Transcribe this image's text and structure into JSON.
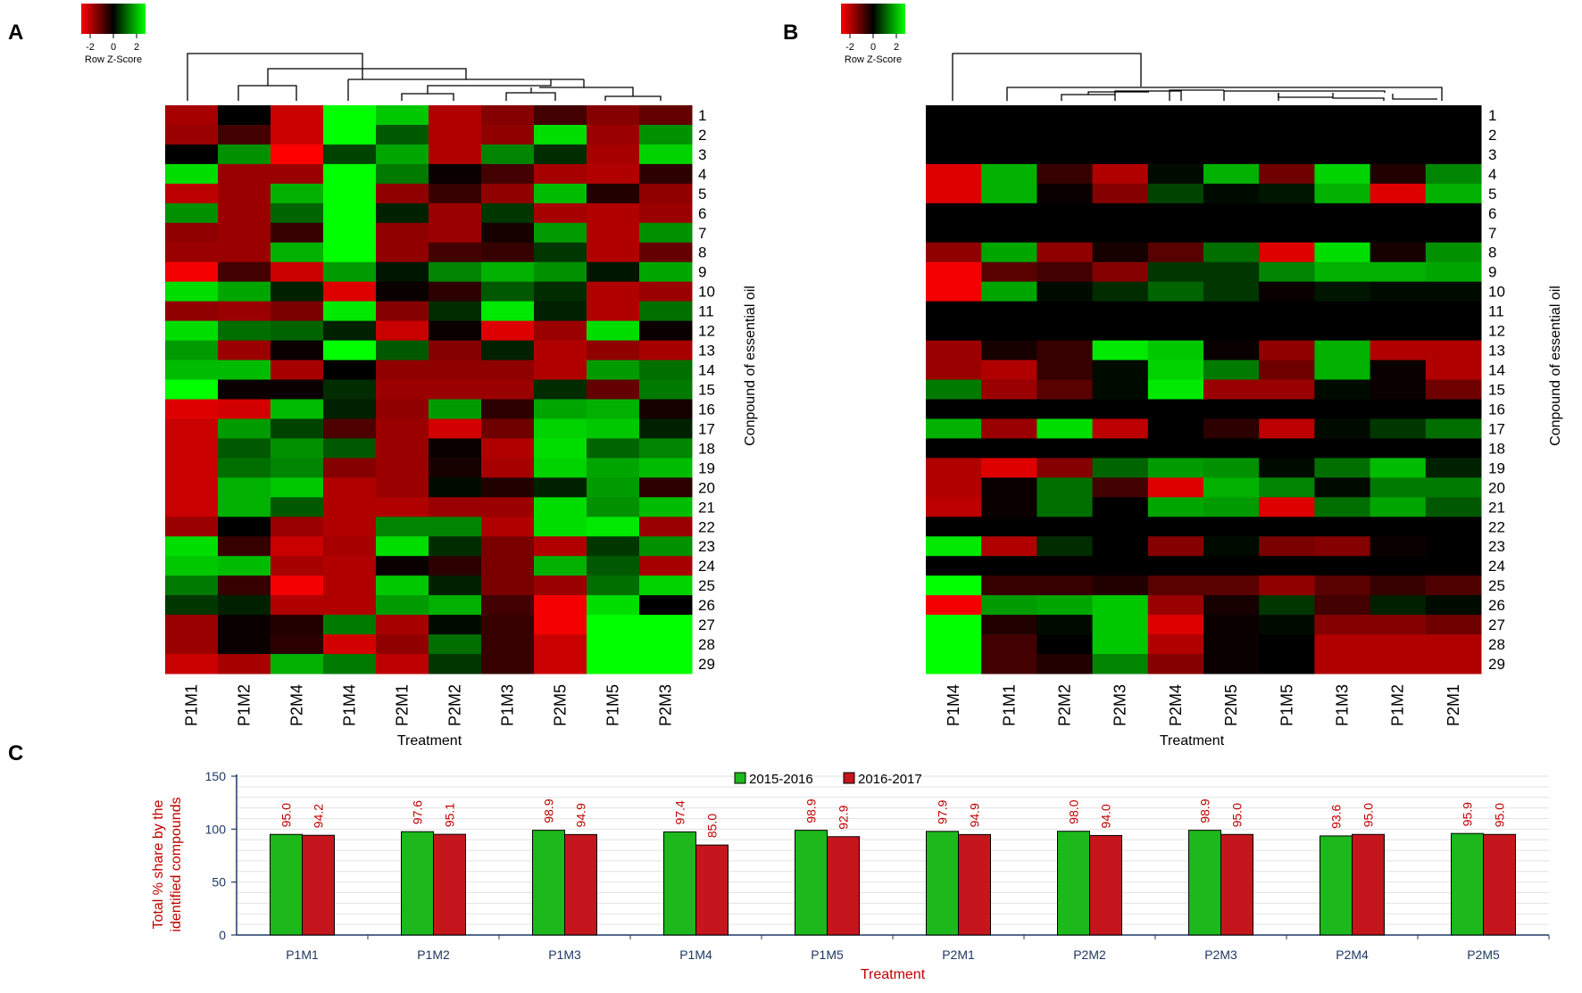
{
  "panel_labels": [
    "A",
    "B",
    "C"
  ],
  "color_key": {
    "title": "Row Z-Score",
    "ticks": [
      "-2",
      "0",
      "2"
    ],
    "low": "#ff0000",
    "mid": "#000000",
    "high": "#00ff00"
  },
  "chart_data": [
    {
      "type": "heatmap",
      "panel": "A",
      "columns": [
        "P1M1",
        "P1M2",
        "P2M4",
        "P1M4",
        "P2M1",
        "P2M2",
        "P1M3",
        "P2M5",
        "P1M5",
        "P2M3"
      ],
      "rows": [
        "1",
        "2",
        "3",
        "4",
        "5",
        "6",
        "7",
        "8",
        "9",
        "10",
        "11",
        "12",
        "13",
        "14",
        "15",
        "16",
        "17",
        "18",
        "19",
        "20",
        "21",
        "22",
        "23",
        "24",
        "25",
        "26",
        "27",
        "28",
        "29"
      ],
      "xlabel": "Treatment",
      "ylabel": "Conpound of essential oil",
      "values": [
        [
          -1.5,
          0,
          -1.8,
          2.5,
          1.8,
          -1.6,
          -1.2,
          -0.6,
          -1.2,
          -0.9
        ],
        [
          -1.4,
          -0.6,
          -1.8,
          2.5,
          0.8,
          -1.6,
          -1.3,
          2,
          -1.4,
          1.3
        ],
        [
          0,
          1.3,
          -2.3,
          0.6,
          1.5,
          -1.6,
          1.2,
          0.4,
          -1.5,
          1.9
        ],
        [
          2,
          -1.4,
          -1.4,
          2.5,
          1.1,
          -0.1,
          -0.6,
          -1.5,
          -1.6,
          -0.4
        ],
        [
          -1.7,
          -1.4,
          1.6,
          2.5,
          -1.3,
          -0.5,
          -1.3,
          1.7,
          -0.3,
          -1.3
        ],
        [
          1.3,
          -1.4,
          0.9,
          2.5,
          0.3,
          -1.4,
          0.5,
          -1.5,
          -1.6,
          -1.4
        ],
        [
          -1.3,
          -1.4,
          -0.5,
          2.5,
          -1.3,
          -1.4,
          -0.2,
          1.4,
          -1.6,
          1.3
        ],
        [
          -1.4,
          -1.4,
          1.6,
          2.5,
          -1.3,
          -0.6,
          -0.5,
          0.5,
          -1.6,
          -0.9
        ],
        [
          -2.2,
          -0.6,
          -1.8,
          1.4,
          0.2,
          1.2,
          1.6,
          1.3,
          0.2,
          1.5
        ],
        [
          2,
          1.5,
          0.3,
          -2,
          -0.1,
          -0.4,
          0.8,
          0.4,
          -1.6,
          -1.4
        ],
        [
          -1.3,
          -1.4,
          -1.1,
          2.1,
          -1.2,
          0.4,
          2.1,
          0.3,
          -1.6,
          1
        ],
        [
          2,
          1,
          0.9,
          0.3,
          -1.8,
          -0.1,
          -2,
          -1.4,
          2,
          -0.1
        ],
        [
          1.4,
          -1.4,
          -0.1,
          2.3,
          0.8,
          -1.2,
          0.3,
          -1.6,
          -1.3,
          -1.5
        ],
        [
          1.7,
          1.7,
          -1.5,
          0,
          -1.3,
          -1.3,
          -1.3,
          -1.6,
          1.4,
          1
        ],
        [
          2.4,
          -0.1,
          -0.1,
          0.4,
          -1.4,
          -1.4,
          -1.4,
          0.4,
          -0.9,
          1.1
        ],
        [
          -2,
          -1.9,
          1.7,
          0.3,
          -1.3,
          1.4,
          -0.4,
          1.5,
          1.6,
          -0.2
        ],
        [
          -1.8,
          1.4,
          0.6,
          -0.7,
          -1.4,
          -1.9,
          -1,
          1.9,
          1.8,
          0.3
        ],
        [
          -1.8,
          0.8,
          1.3,
          0.8,
          -1.4,
          -0.1,
          -1.6,
          2,
          0.9,
          1.2
        ],
        [
          -1.8,
          1,
          1.2,
          -1.2,
          -1.4,
          -0.2,
          -1.5,
          1.9,
          1.5,
          1.7
        ],
        [
          -1.8,
          1.6,
          1.8,
          -1.6,
          -1.4,
          0.1,
          -0.3,
          0.3,
          1.4,
          -0.4
        ],
        [
          -1.8,
          1.6,
          0.8,
          -1.6,
          -1.6,
          -1.4,
          -1.4,
          2,
          1.3,
          1.7
        ],
        [
          -1.4,
          0,
          -1.4,
          -1.6,
          1.2,
          1.2,
          -1.6,
          2,
          2.1,
          -1.4
        ],
        [
          2,
          -0.5,
          -1.8,
          -1.5,
          2,
          0.4,
          -1.1,
          -1.6,
          0.5,
          1.3
        ],
        [
          1.8,
          1.7,
          -1.5,
          -1.6,
          -0.1,
          -0.4,
          -1.1,
          1.6,
          0.8,
          -1.5
        ],
        [
          1.1,
          -0.5,
          -2.2,
          -1.6,
          1.8,
          0.3,
          -1.1,
          -1.4,
          1,
          1.9
        ],
        [
          0.5,
          0.3,
          -1.6,
          -1.6,
          1.4,
          1.6,
          -0.6,
          -2.2,
          2,
          0
        ],
        [
          -1.4,
          -0.1,
          -0.3,
          1.1,
          -1.5,
          0.1,
          -0.5,
          -2.2,
          2.3,
          2.3
        ],
        [
          -1.4,
          -0.1,
          -0.4,
          -1.9,
          -1.3,
          1,
          -0.5,
          -1.8,
          2.3,
          2.3
        ],
        [
          -1.8,
          -1.5,
          1.6,
          1.1,
          -1.7,
          0.5,
          -0.5,
          -1.8,
          2.3,
          2.3
        ]
      ]
    },
    {
      "type": "heatmap",
      "panel": "B",
      "columns": [
        "P1M4",
        "P1M1",
        "P2M2",
        "P2M3",
        "P2M4",
        "P2M5",
        "P1M5",
        "P1M3",
        "P1M2",
        "P2M1"
      ],
      "rows": [
        "1",
        "2",
        "3",
        "4",
        "5",
        "6",
        "7",
        "8",
        "9",
        "10",
        "11",
        "12",
        "13",
        "14",
        "15",
        "16",
        "17",
        "18",
        "19",
        "20",
        "21",
        "22",
        "23",
        "24",
        "25",
        "26",
        "27",
        "28",
        "29"
      ],
      "xlabel": "Treatment",
      "ylabel": "Conpound of essential oil",
      "values": [
        [
          0,
          0,
          0,
          0,
          0,
          0,
          0,
          0,
          0,
          0
        ],
        [
          0,
          0,
          0,
          0,
          0,
          0,
          0,
          0,
          0,
          0
        ],
        [
          0,
          0,
          0,
          0,
          0,
          0,
          0,
          0,
          0,
          0
        ],
        [
          -2,
          1.6,
          -0.5,
          -1.6,
          0.1,
          1.6,
          -1,
          1.9,
          -0.3,
          1.2
        ],
        [
          -2,
          1.6,
          -0.1,
          -1.2,
          0.6,
          0.1,
          0.2,
          1.6,
          -2,
          1.6
        ],
        [
          0,
          0,
          0,
          0,
          0,
          0,
          0,
          0,
          0,
          0
        ],
        [
          0,
          0,
          0,
          0,
          0,
          0,
          0,
          0,
          0,
          0
        ],
        [
          -1.3,
          1.5,
          -1.3,
          -0.2,
          -0.8,
          1,
          -2,
          2,
          -0.2,
          1.3
        ],
        [
          -2.2,
          -0.8,
          -0.6,
          -1.2,
          0.5,
          0.5,
          1.2,
          1.6,
          1.6,
          1.5
        ],
        [
          -2.2,
          1.5,
          0.1,
          0.4,
          0.9,
          0.5,
          -0.1,
          0.2,
          0.1,
          0.1
        ],
        [
          0,
          0,
          0,
          0,
          0,
          0,
          0,
          0,
          0,
          0
        ],
        [
          0,
          0,
          0,
          0,
          0,
          0,
          0,
          0,
          0,
          0
        ],
        [
          -1.4,
          -0.2,
          -0.5,
          2.1,
          1.8,
          -0.1,
          -1.3,
          1.6,
          -1.6,
          -1.6
        ],
        [
          -1.4,
          -1.6,
          -0.5,
          0.1,
          1.9,
          1.1,
          -1,
          1.6,
          -0.1,
          -1.6
        ],
        [
          1.1,
          -1.4,
          -0.8,
          0.1,
          2.1,
          -1.4,
          -1.4,
          0.1,
          -0.1,
          -1
        ],
        [
          0,
          0,
          0,
          0,
          0,
          0,
          0,
          0,
          0,
          0
        ],
        [
          1.6,
          -1.4,
          2,
          -1.7,
          0,
          -0.4,
          -1.7,
          0.1,
          0.5,
          1
        ],
        [
          0,
          0,
          0,
          0,
          0,
          0,
          0,
          0,
          0,
          0
        ],
        [
          -1.6,
          -2,
          -1.2,
          0.9,
          1.4,
          1.3,
          0.1,
          1,
          1.7,
          0.3
        ],
        [
          -1.6,
          -0.1,
          1,
          -0.6,
          -2,
          1.6,
          1.2,
          0.1,
          1.1,
          1.1
        ],
        [
          -1.7,
          -0.1,
          1,
          0,
          1.5,
          1.4,
          -2,
          1,
          1.5,
          0.8
        ],
        [
          0,
          0,
          0,
          0,
          0,
          0,
          0,
          0,
          0,
          0
        ],
        [
          2.1,
          -1.6,
          0.4,
          0,
          -1.2,
          0.1,
          -1.1,
          -1.2,
          -0.1,
          0
        ],
        [
          0,
          0,
          0,
          0,
          0,
          0,
          0,
          0,
          0,
          0
        ],
        [
          2.3,
          -0.5,
          -0.5,
          -0.3,
          -0.8,
          -0.8,
          -1.3,
          -0.8,
          -0.5,
          -0.7
        ],
        [
          -2.2,
          1.4,
          1.5,
          1.8,
          -1.4,
          -0.2,
          0.5,
          -0.6,
          0.3,
          0.1
        ],
        [
          2.3,
          -0.3,
          0.1,
          1.8,
          -2,
          -0.1,
          0.1,
          -1.2,
          -1.2,
          -1
        ],
        [
          2.3,
          -0.6,
          0,
          1.8,
          -1.6,
          -0.1,
          0,
          -1.6,
          -1.6,
          -1.6
        ],
        [
          2.3,
          -0.6,
          -0.3,
          1.2,
          -1.2,
          -0.1,
          0,
          -1.6,
          -1.6,
          -1.6
        ]
      ]
    },
    {
      "type": "bar",
      "panel": "C",
      "categories": [
        "P1M1",
        "P1M2",
        "P1M3",
        "P1M4",
        "P1M5",
        "P2M1",
        "P2M2",
        "P2M3",
        "P2M4",
        "P2M5"
      ],
      "series": [
        {
          "name": "2015-2016",
          "color": "#1cb81c",
          "values": [
            95.0,
            97.6,
            98.9,
            97.4,
            98.9,
            97.9,
            98.0,
            98.9,
            93.6,
            95.9
          ],
          "labels": [
            "95.0",
            "97.6",
            "98.9",
            "97.4",
            "98.9",
            "97.9",
            "98.0",
            "98.9",
            "93.6",
            "95.9"
          ]
        },
        {
          "name": "2016-2017",
          "color": "#c4161c",
          "values": [
            94.2,
            95.1,
            94.9,
            85.0,
            92.9,
            94.9,
            94.0,
            95.0,
            95.0,
            95.0
          ],
          "labels": [
            "94.2",
            "95.1",
            "94.9",
            "85.0",
            "92.9",
            "94.9",
            "94.0",
            "95.0",
            "95.0",
            "95.0"
          ]
        }
      ],
      "xlabel": "Treatment",
      "ylabel": "Total % share by the identified compounds",
      "ylabel_lines": [
        "Total % share by the",
        "identified compounds"
      ],
      "ylim": [
        0,
        150
      ],
      "yticks": [
        "0",
        "50",
        "100",
        "150"
      ],
      "legend": "top-center",
      "grid": true
    }
  ]
}
